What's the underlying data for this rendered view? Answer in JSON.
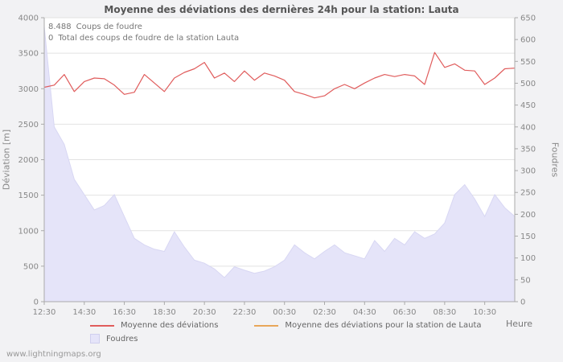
{
  "title": "Moyenne des déviations des dernières 24h pour la station: Lauta",
  "annotations": {
    "strikes_count": "8.488",
    "strikes_label": "Coups de foudre",
    "station_total_count": "0",
    "station_total_label": "Total des coups de foudre de la station Lauta"
  },
  "axes": {
    "left_label": "Déviation [m]",
    "right_label": "Foudres",
    "x_label": "Heure"
  },
  "legend": [
    {
      "label": "Moyenne des déviations",
      "color": "#e05c5c",
      "type": "line"
    },
    {
      "label": "Moyenne des déviations pour la station de Lauta",
      "color": "#e8a75a",
      "type": "line"
    },
    {
      "label": "Foudres",
      "color": "#e5e4f9",
      "type": "area"
    }
  ],
  "watermark": "www.lightningmaps.org",
  "colors": {
    "grid": "#e2e2e2",
    "axis": "#aaaaaa",
    "tick_text": "#888888",
    "plot_background": "#ffffff",
    "area_fill": "#e5e4f9",
    "area_edge": "#d8d7f3",
    "deviation_line": "#e05c5c"
  },
  "chart_data": {
    "type": "line",
    "title": "Moyenne des déviations des dernières 24h pour la station: Lauta",
    "xlabel": "Heure",
    "ylabel_left": "Déviation [m]",
    "ylabel_right": "Foudres",
    "grid": true,
    "legend_position": "bottom",
    "left_axis": {
      "min": 0,
      "max": 4000,
      "step": 500
    },
    "right_axis": {
      "min": 0,
      "max": 650,
      "step": 50
    },
    "x_ticks": [
      "12:30",
      "14:30",
      "16:30",
      "18:30",
      "20:30",
      "22:30",
      "00:30",
      "02:30",
      "04:30",
      "06:30",
      "08:30",
      "10:30"
    ],
    "x": [
      "12:30",
      "13:00",
      "13:30",
      "14:00",
      "14:30",
      "15:00",
      "15:30",
      "16:00",
      "16:30",
      "17:00",
      "17:30",
      "18:00",
      "18:30",
      "19:00",
      "19:30",
      "20:00",
      "20:30",
      "21:00",
      "21:30",
      "22:00",
      "22:30",
      "23:00",
      "23:30",
      "00:00",
      "00:30",
      "01:00",
      "01:30",
      "02:00",
      "02:30",
      "03:00",
      "03:30",
      "04:00",
      "04:30",
      "05:00",
      "05:30",
      "06:00",
      "06:30",
      "07:00",
      "07:30",
      "08:00",
      "08:30",
      "09:00",
      "09:30",
      "10:00",
      "10:30",
      "11:00",
      "11:30",
      "12:00"
    ],
    "series": [
      {
        "name": "Moyenne des déviations",
        "axis": "left",
        "kind": "line",
        "color": "#e05c5c",
        "values": [
          3020,
          3050,
          3200,
          2960,
          3100,
          3150,
          3140,
          3050,
          2920,
          2950,
          3200,
          3080,
          2960,
          3150,
          3230,
          3280,
          3370,
          3150,
          3220,
          3100,
          3250,
          3120,
          3220,
          3180,
          3120,
          2960,
          2920,
          2870,
          2900,
          3000,
          3060,
          3000,
          3080,
          3150,
          3200,
          3170,
          3200,
          3180,
          3060,
          3510,
          3300,
          3350,
          3260,
          3250,
          3060,
          3150,
          3280,
          3290
        ]
      },
      {
        "name": "Moyenne des déviations pour la station de Lauta",
        "axis": "left",
        "kind": "line",
        "color": "#e8a75a",
        "values": []
      },
      {
        "name": "Foudres",
        "axis": "right",
        "kind": "area",
        "color": "#e5e4f9",
        "values": [
          630,
          400,
          360,
          280,
          245,
          210,
          220,
          245,
          195,
          145,
          130,
          120,
          115,
          160,
          125,
          95,
          88,
          75,
          55,
          80,
          72,
          65,
          70,
          80,
          95,
          130,
          112,
          98,
          115,
          130,
          112,
          105,
          98,
          140,
          115,
          145,
          130,
          160,
          145,
          155,
          180,
          245,
          268,
          235,
          195,
          245,
          215,
          195
        ]
      }
    ]
  }
}
